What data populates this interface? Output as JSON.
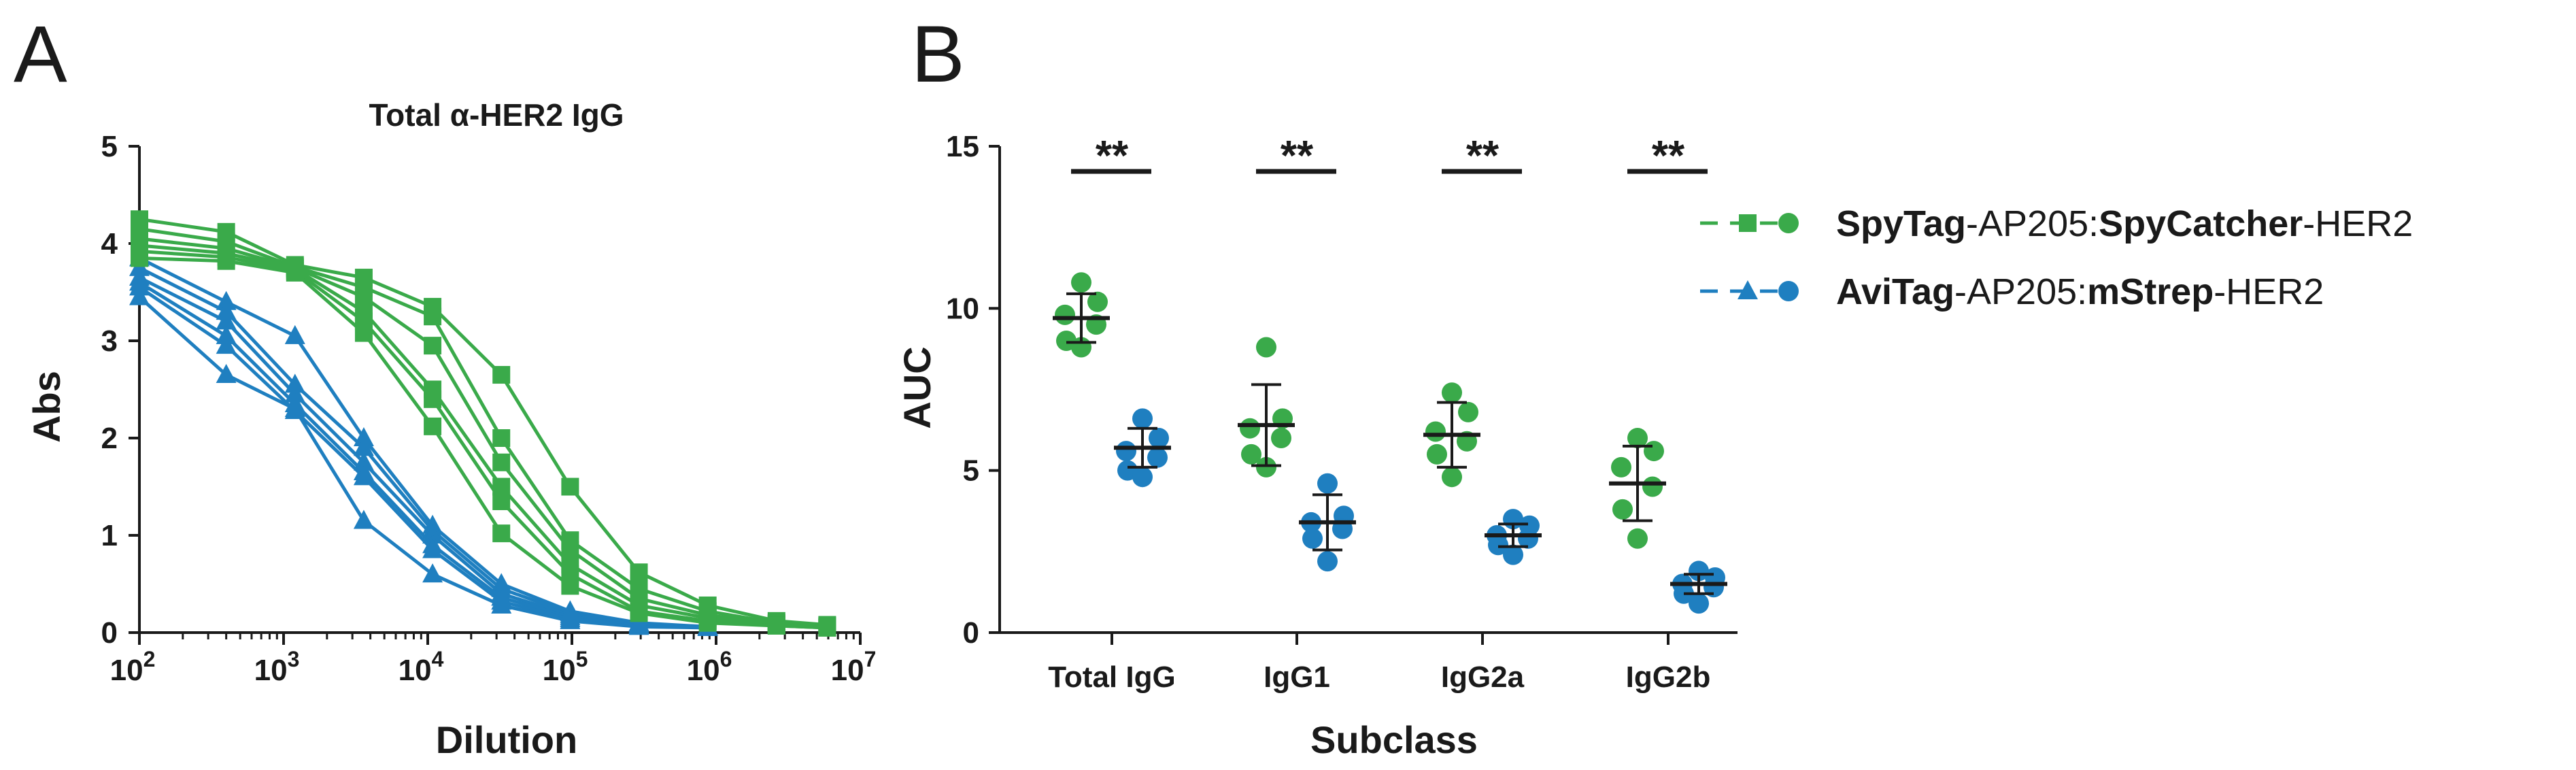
{
  "panelA": {
    "letter": "A",
    "title": "Total α-HER2 IgG",
    "ylabel": "Abs",
    "xlabel": "Dilution"
  },
  "panelB": {
    "letter": "B",
    "ylabel": "AUC",
    "xlabel": "Subclass",
    "significance": "**"
  },
  "legend": [
    {
      "name": "SpyTag-AP205:SpyCatcher-HER2",
      "parts": [
        {
          "text": "SpyTag",
          "bold": true
        },
        {
          "text": "-AP205:",
          "bold": false
        },
        {
          "text": "SpyCatcher",
          "bold": true
        },
        {
          "text": "-HER2",
          "bold": false
        }
      ],
      "color": "#3aaa4a",
      "marker": "square"
    },
    {
      "name": "AviTag-AP205:mStrep-HER2",
      "parts": [
        {
          "text": "AviTag",
          "bold": true
        },
        {
          "text": "-AP205:",
          "bold": false
        },
        {
          "text": "mStrep",
          "bold": true
        },
        {
          "text": "-HER2",
          "bold": false
        }
      ],
      "color": "#1f7fc0",
      "marker": "triangle"
    }
  ],
  "colors": {
    "green": "#3aaa4a",
    "blue": "#1f7fc0",
    "axis": "#1a1a1a"
  },
  "chart_data": [
    {
      "type": "line",
      "title": "Total α-HER2 IgG",
      "xlabel": "Dilution",
      "ylabel": "Abs",
      "xscale": "log10",
      "xlim": [
        100,
        10000000
      ],
      "ylim": [
        0,
        5
      ],
      "xticks": [
        100,
        1000,
        10000,
        100000,
        1000000,
        10000000
      ],
      "xtick_labels": [
        [
          "10",
          "2"
        ],
        [
          "10",
          "3"
        ],
        [
          "10",
          "4"
        ],
        [
          "10",
          "5"
        ],
        [
          "10",
          "6"
        ],
        [
          "10",
          "7"
        ]
      ],
      "yticks": [
        0,
        1,
        2,
        3,
        4,
        5
      ],
      "x": [
        100,
        400,
        1200,
        3600,
        10800,
        32400,
        97200,
        291600,
        874800,
        2624400,
        5900000
      ],
      "series": [
        {
          "name": "SpyTag-AP205:SpyCatcher-HER2",
          "group": "green",
          "marker": "square",
          "values": [
            4.25,
            4.12,
            3.78,
            3.65,
            3.35,
            2.65,
            1.5,
            0.62,
            0.28,
            0.12,
            0.08
          ]
        },
        {
          "name": "SpyTag-AP205:SpyCatcher-HER2",
          "group": "green",
          "marker": "square",
          "values": [
            4.15,
            4.02,
            3.76,
            3.55,
            3.25,
            2.0,
            0.95,
            0.45,
            0.22,
            0.1,
            0.07
          ]
        },
        {
          "name": "SpyTag-AP205:SpyCatcher-HER2",
          "group": "green",
          "marker": "square",
          "values": [
            4.05,
            3.95,
            3.75,
            3.45,
            2.95,
            1.75,
            0.85,
            0.35,
            0.18,
            0.09,
            0.06
          ]
        },
        {
          "name": "SpyTag-AP205:SpyCatcher-HER2",
          "group": "green",
          "marker": "square",
          "values": [
            3.98,
            3.9,
            3.74,
            3.3,
            2.5,
            1.5,
            0.7,
            0.28,
            0.15,
            0.08,
            0.06
          ]
        },
        {
          "name": "SpyTag-AP205:SpyCatcher-HER2",
          "group": "green",
          "marker": "square",
          "values": [
            3.92,
            3.86,
            3.72,
            3.2,
            2.4,
            1.35,
            0.6,
            0.22,
            0.12,
            0.07,
            0.05
          ]
        },
        {
          "name": "SpyTag-AP205:SpyCatcher-HER2",
          "group": "green",
          "marker": "square",
          "values": [
            3.85,
            3.82,
            3.7,
            3.08,
            2.12,
            1.02,
            0.48,
            0.2,
            0.1,
            0.07,
            0.05
          ]
        },
        {
          "name": "AviTag-AP205:mStrep-HER2",
          "group": "blue",
          "marker": "triangle",
          "values": [
            3.85,
            3.4,
            3.05,
            2.0,
            1.1,
            0.5,
            0.22,
            0.1,
            0.06,
            null,
            null
          ]
        },
        {
          "name": "AviTag-AP205:mStrep-HER2",
          "group": "blue",
          "marker": "triangle",
          "values": [
            3.75,
            3.3,
            2.55,
            1.9,
            1.05,
            0.45,
            0.2,
            0.09,
            0.06,
            null,
            null
          ]
        },
        {
          "name": "AviTag-AP205:mStrep-HER2",
          "group": "blue",
          "marker": "triangle",
          "values": [
            3.65,
            3.2,
            2.45,
            1.75,
            1.0,
            0.4,
            0.18,
            0.08,
            0.05,
            null,
            null
          ]
        },
        {
          "name": "AviTag-AP205:mStrep-HER2",
          "group": "blue",
          "marker": "triangle",
          "values": [
            3.6,
            3.05,
            2.35,
            1.65,
            0.9,
            0.36,
            0.16,
            0.07,
            0.05,
            null,
            null
          ]
        },
        {
          "name": "AviTag-AP205:mStrep-HER2",
          "group": "blue",
          "marker": "triangle",
          "values": [
            3.55,
            2.95,
            2.28,
            1.6,
            0.85,
            0.32,
            0.14,
            0.07,
            0.05,
            null,
            null
          ]
        },
        {
          "name": "AviTag-AP205:mStrep-HER2",
          "group": "blue",
          "marker": "triangle",
          "values": [
            3.45,
            2.65,
            2.3,
            1.15,
            0.6,
            0.28,
            0.12,
            0.06,
            0.05,
            null,
            null
          ]
        }
      ]
    },
    {
      "type": "scatter",
      "xlabel": "Subclass",
      "ylabel": "AUC",
      "ylim": [
        0,
        15
      ],
      "yticks": [
        0,
        5,
        10,
        15
      ],
      "categories": [
        "Total IgG",
        "IgG1",
        "IgG2a",
        "IgG2b"
      ],
      "significance": [
        "**",
        "**",
        "**",
        "**"
      ],
      "series": [
        {
          "name": "SpyTag-AP205:SpyCatcher-HER2",
          "group": "green",
          "points": [
            [
              10.8,
              10.2,
              9.8,
              9.5,
              9.0,
              8.8
            ],
            [
              8.8,
              6.6,
              6.3,
              6.0,
              5.5,
              5.1
            ],
            [
              7.4,
              6.8,
              6.2,
              5.9,
              5.5,
              4.8
            ],
            [
              6.0,
              5.6,
              5.1,
              4.5,
              3.8,
              2.9
            ]
          ],
          "mean": [
            9.7,
            6.4,
            6.1,
            4.6
          ],
          "sd": [
            0.75,
            1.25,
            1.0,
            1.15
          ]
        },
        {
          "name": "AviTag-AP205:mStrep-HER2",
          "group": "blue",
          "points": [
            [
              6.6,
              6.0,
              5.6,
              5.4,
              5.0,
              4.8
            ],
            [
              4.6,
              3.6,
              3.4,
              3.2,
              2.9,
              2.2
            ],
            [
              3.5,
              3.3,
              3.0,
              2.9,
              2.7,
              2.4
            ],
            [
              1.9,
              1.7,
              1.5,
              1.4,
              1.2,
              0.9
            ]
          ],
          "mean": [
            5.7,
            3.4,
            3.0,
            1.5
          ],
          "sd": [
            0.6,
            0.85,
            0.35,
            0.3
          ]
        }
      ]
    }
  ]
}
